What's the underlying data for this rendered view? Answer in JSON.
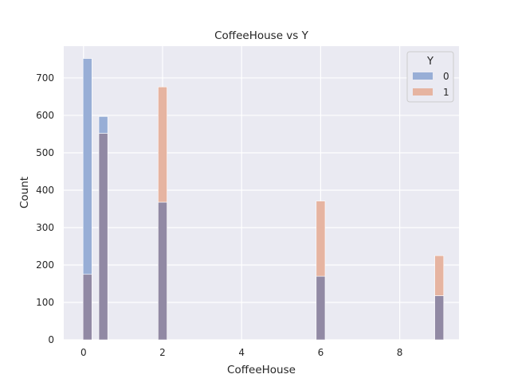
{
  "chart_data": {
    "type": "bar",
    "title": "CoffeeHouse vs Y",
    "xlabel": "CoffeeHouse",
    "ylabel": "Count",
    "xlim": [
      -0.5,
      9.5
    ],
    "ylim": [
      0,
      785
    ],
    "xticks": [
      0,
      2,
      4,
      6,
      8
    ],
    "yticks": [
      0,
      100,
      200,
      300,
      400,
      500,
      600,
      700
    ],
    "grid": true,
    "legend": {
      "title": "Y",
      "position": "top-right"
    },
    "bin_width": 0.225,
    "overlap_color": "#9189a4",
    "series": [
      {
        "name": "0",
        "color": "#98aed6",
        "x": [
          0.1,
          0.5,
          2,
          6,
          9
        ],
        "values": [
          752,
          597,
          368,
          170,
          118
        ]
      },
      {
        "name": "1",
        "color": "#e6b4a1",
        "x": [
          0.1,
          0.5,
          2,
          6,
          9
        ],
        "values": [
          175,
          552,
          676,
          371,
          225
        ]
      }
    ]
  }
}
